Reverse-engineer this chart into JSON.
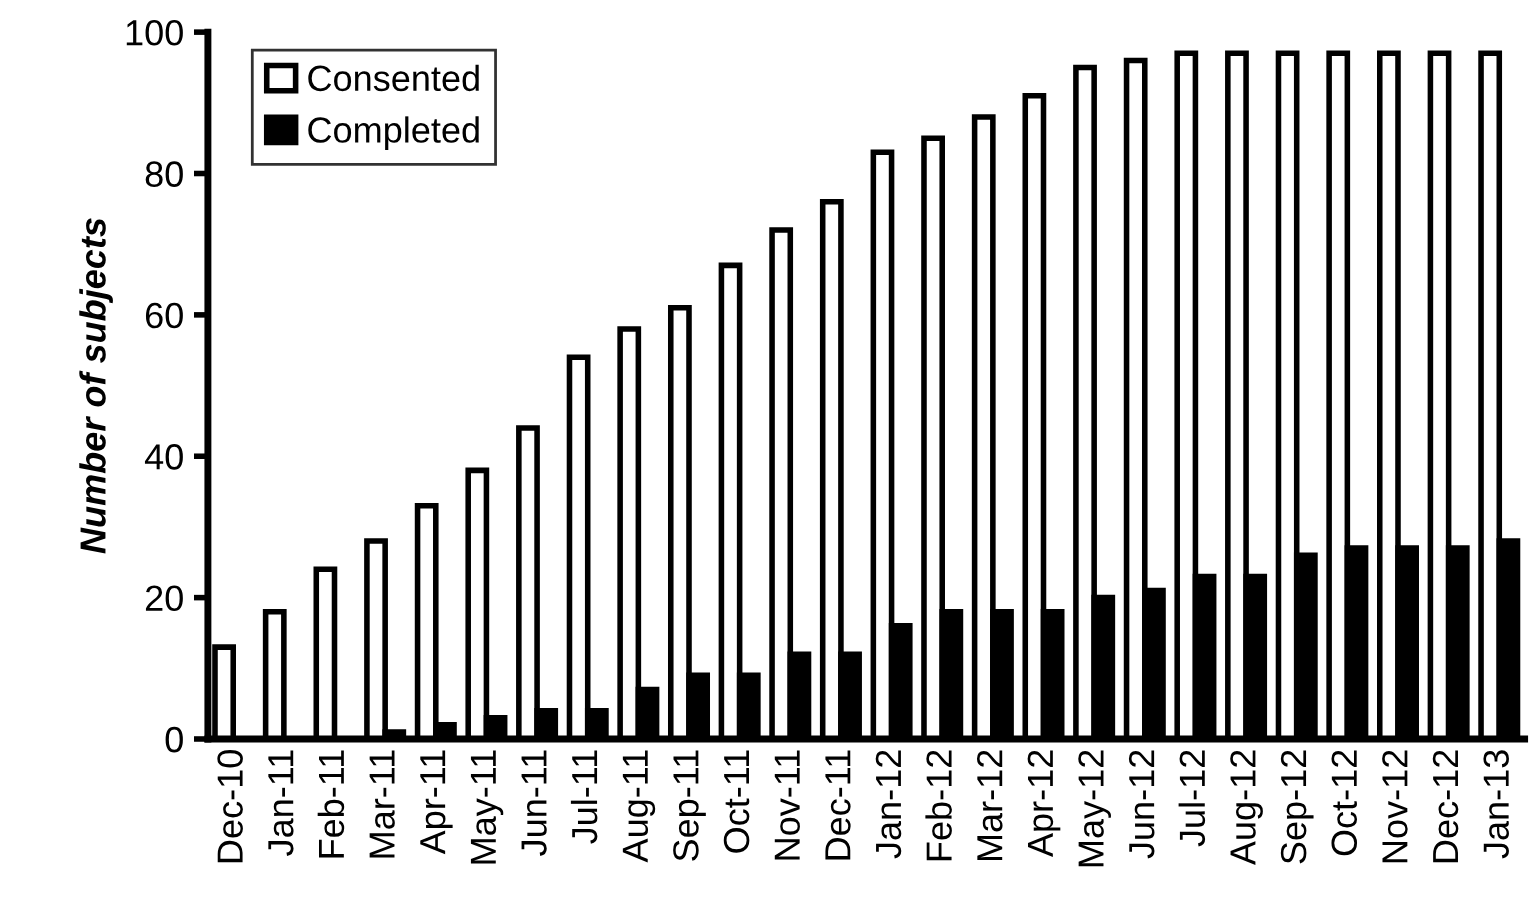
{
  "chart_data": {
    "type": "bar",
    "ylabel": "Number of subjects",
    "categories": [
      "Dec-10",
      "Jan-11",
      "Feb-11",
      "Mar-11",
      "Apr-11",
      "May-11",
      "Jun-11",
      "Jul-11",
      "Aug-11",
      "Sep-11",
      "Oct-11",
      "Nov-11",
      "Dec-11",
      "Jan-12",
      "Feb-12",
      "Mar-12",
      "Apr-12",
      "May-12",
      "Jun-12",
      "Jul-12",
      "Aug-12",
      "Sep-12",
      "Oct-12",
      "Nov-12",
      "Dec-12",
      "Jan-13"
    ],
    "series": [
      {
        "name": "Consented",
        "color": "#ffffff",
        "values": [
          13,
          18,
          24,
          28,
          33,
          38,
          44,
          54,
          58,
          61,
          67,
          72,
          76,
          83,
          85,
          88,
          91,
          95,
          96,
          97,
          97,
          97,
          97,
          97,
          97,
          97
        ]
      },
      {
        "name": "Completed",
        "color": "#000000",
        "values": [
          0,
          0,
          0,
          1,
          2,
          3,
          4,
          4,
          7,
          9,
          9,
          12,
          12,
          16,
          18,
          18,
          18,
          20,
          21,
          23,
          23,
          26,
          27,
          27,
          27,
          28
        ]
      }
    ],
    "ylim": [
      0,
      100
    ],
    "yticks": [
      0,
      20,
      40,
      60,
      80,
      100
    ],
    "grid": false,
    "legend": "top left"
  }
}
